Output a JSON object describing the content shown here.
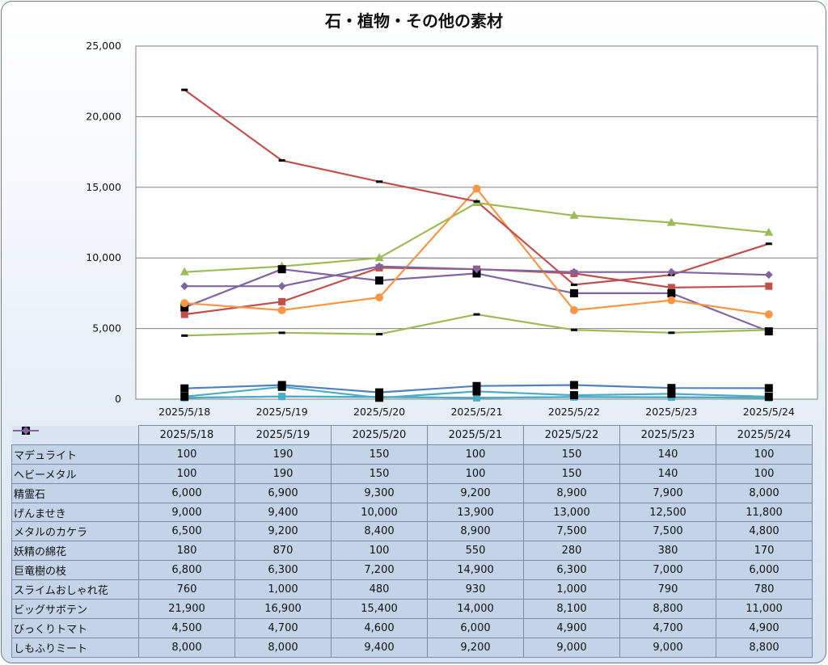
{
  "chart_data": {
    "type": "line",
    "title": "石・植物・その他の素材",
    "xlabel": "",
    "ylabel": "",
    "ylim": [
      0,
      25000
    ],
    "yticks": [
      "0",
      "5,000",
      "10,000",
      "15,000",
      "20,000",
      "25,000"
    ],
    "grid": true,
    "legend": "data-table",
    "categories": [
      "2025/5/18",
      "2025/5/19",
      "2025/5/20",
      "2025/5/21",
      "2025/5/22",
      "2025/5/23",
      "2025/5/24"
    ],
    "series": [
      {
        "name": "マデュライト",
        "color": "#4f81bd",
        "marker": "diamond",
        "values": [
          100,
          190,
          150,
          100,
          150,
          140,
          100
        ]
      },
      {
        "name": "ヘビーメタル",
        "color": "#4bacc6",
        "marker": "square",
        "values": [
          100,
          190,
          150,
          100,
          150,
          140,
          100
        ]
      },
      {
        "name": "精霊石",
        "color": "#c0504d",
        "marker": "square",
        "values": [
          6000,
          6900,
          9300,
          9200,
          8900,
          7900,
          8000
        ]
      },
      {
        "name": "げんませき",
        "color": "#9bbb59",
        "marker": "triangle",
        "values": [
          9000,
          9400,
          10000,
          13900,
          13000,
          12500,
          11800
        ]
      },
      {
        "name": "メタルのカケラ",
        "color": "#8064a2",
        "marker": "square-black",
        "values": [
          6500,
          9200,
          8400,
          8900,
          7500,
          7500,
          4800
        ]
      },
      {
        "name": "妖精の綿花",
        "color": "#4bacc6",
        "marker": "square-black",
        "values": [
          180,
          870,
          100,
          550,
          280,
          380,
          170
        ]
      },
      {
        "name": "巨竜樹の枝",
        "color": "#f79646",
        "marker": "circle",
        "values": [
          6800,
          6300,
          7200,
          14900,
          6300,
          7000,
          6000
        ]
      },
      {
        "name": "スライムおしゃれ花",
        "color": "#4f81bd",
        "marker": "square-black",
        "values": [
          760,
          1000,
          480,
          930,
          1000,
          790,
          780
        ]
      },
      {
        "name": "ビッグサボテン",
        "color": "#c0504d",
        "marker": "dash",
        "values": [
          21900,
          16900,
          15400,
          14000,
          8100,
          8800,
          11000
        ]
      },
      {
        "name": "びっくりトマト",
        "color": "#9bbb59",
        "marker": "dash",
        "values": [
          4500,
          4700,
          4600,
          6000,
          4900,
          4700,
          4900
        ]
      },
      {
        "name": "しもふりミート",
        "color": "#8064a2",
        "marker": "diamond",
        "values": [
          8000,
          8000,
          9400,
          9200,
          9000,
          9000,
          8800
        ]
      }
    ]
  },
  "table": {
    "headers": [
      "2025/5/18",
      "2025/5/19",
      "2025/5/20",
      "2025/5/21",
      "2025/5/22",
      "2025/5/23",
      "2025/5/24"
    ],
    "rows": [
      [
        "100",
        "190",
        "150",
        "100",
        "150",
        "140",
        "100"
      ],
      [
        "100",
        "190",
        "150",
        "100",
        "150",
        "140",
        "100"
      ],
      [
        "6,000",
        "6,900",
        "9,300",
        "9,200",
        "8,900",
        "7,900",
        "8,000"
      ],
      [
        "9,000",
        "9,400",
        "10,000",
        "13,900",
        "13,000",
        "12,500",
        "11,800"
      ],
      [
        "6,500",
        "9,200",
        "8,400",
        "8,900",
        "7,500",
        "7,500",
        "4,800"
      ],
      [
        "180",
        "870",
        "100",
        "550",
        "280",
        "380",
        "170"
      ],
      [
        "6,800",
        "6,300",
        "7,200",
        "14,900",
        "6,300",
        "7,000",
        "6,000"
      ],
      [
        "760",
        "1,000",
        "480",
        "930",
        "1,000",
        "790",
        "780"
      ],
      [
        "21,900",
        "16,900",
        "15,400",
        "14,000",
        "8,100",
        "8,800",
        "11,000"
      ],
      [
        "4,500",
        "4,700",
        "4,600",
        "6,000",
        "4,900",
        "4,700",
        "4,900"
      ],
      [
        "8,000",
        "8,000",
        "9,400",
        "9,200",
        "9,000",
        "9,000",
        "8,800"
      ]
    ]
  }
}
